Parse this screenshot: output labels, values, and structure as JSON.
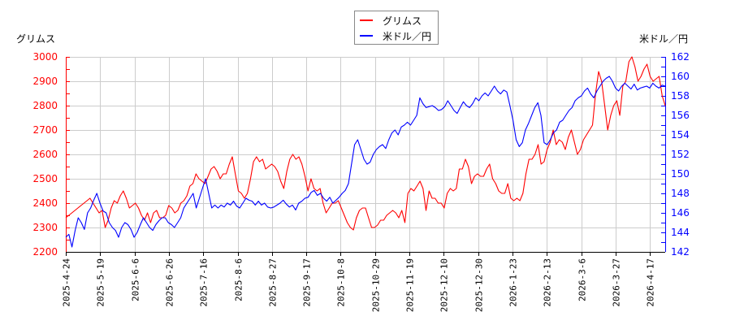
{
  "legend": {
    "items": [
      {
        "label": "グリムス",
        "color": "#ff0000"
      },
      {
        "label": "米ドル／円",
        "color": "#0000ff"
      }
    ]
  },
  "axes": {
    "left_title": "グリムス",
    "right_title": "米ドル／円"
  },
  "chart_data": {
    "type": "line",
    "title": "",
    "xlabel": "",
    "ylabel_left": "グリムス",
    "ylabel_right": "米ドル／円",
    "grid": true,
    "legend_position": "top-center",
    "x_tick_labels": [
      "2025-4-24",
      "2025-5-19",
      "2025-6-6",
      "2025-6-26",
      "2025-7-16",
      "2025-8-6",
      "2025-8-27",
      "2025-9-17",
      "2025-10-8",
      "2025-10-29",
      "2025-11-19",
      "2025-12-10",
      "2025-12-30",
      "2026-1-23",
      "2026-2-13",
      "2026-3-6",
      "2026-3-27",
      "2026-4-17"
    ],
    "y_left": {
      "min": 2200,
      "max": 3000,
      "ticks": [
        2200,
        2300,
        2400,
        2500,
        2600,
        2700,
        2800,
        2900,
        3000
      ],
      "color": "#ff0000"
    },
    "y_right": {
      "min": 142,
      "max": 162,
      "ticks": [
        142,
        144,
        146,
        148,
        150,
        152,
        154,
        156,
        158,
        160,
        162
      ],
      "color": "#0000ff"
    },
    "series": [
      {
        "name": "グリムス",
        "axis": "left",
        "color": "#ff0000",
        "values": [
          2340,
          2350,
          2360,
          2370,
          2380,
          2390,
          2400,
          2410,
          2420,
          2400,
          2380,
          2360,
          2370,
          2300,
          2330,
          2380,
          2410,
          2400,
          2430,
          2450,
          2420,
          2380,
          2390,
          2400,
          2380,
          2350,
          2330,
          2360,
          2320,
          2360,
          2370,
          2340,
          2340,
          2350,
          2390,
          2380,
          2360,
          2370,
          2400,
          2410,
          2430,
          2470,
          2480,
          2520,
          2500,
          2490,
          2480,
          2510,
          2540,
          2550,
          2530,
          2500,
          2520,
          2520,
          2560,
          2590,
          2520,
          2450,
          2440,
          2420,
          2440,
          2500,
          2570,
          2590,
          2570,
          2580,
          2540,
          2550,
          2560,
          2550,
          2530,
          2490,
          2460,
          2530,
          2580,
          2600,
          2580,
          2590,
          2560,
          2510,
          2450,
          2500,
          2460,
          2450,
          2460,
          2400,
          2360,
          2380,
          2400,
          2400,
          2410,
          2380,
          2350,
          2320,
          2300,
          2290,
          2340,
          2370,
          2380,
          2380,
          2340,
          2300,
          2300,
          2310,
          2330,
          2330,
          2350,
          2360,
          2370,
          2360,
          2340,
          2370,
          2320,
          2440,
          2460,
          2450,
          2470,
          2490,
          2460,
          2370,
          2450,
          2420,
          2420,
          2400,
          2400,
          2380,
          2440,
          2460,
          2450,
          2460,
          2540,
          2540,
          2580,
          2550,
          2480,
          2510,
          2520,
          2510,
          2510,
          2540,
          2560,
          2500,
          2480,
          2450,
          2440,
          2440,
          2480,
          2420,
          2410,
          2420,
          2410,
          2440,
          2520,
          2580,
          2580,
          2600,
          2640,
          2560,
          2570,
          2620,
          2650,
          2700,
          2640,
          2660,
          2650,
          2620,
          2670,
          2700,
          2650,
          2600,
          2620,
          2660,
          2680,
          2700,
          2720,
          2850,
          2940,
          2900,
          2800,
          2700,
          2760,
          2800,
          2820,
          2760,
          2880,
          2900,
          2980,
          3000,
          2960,
          2900,
          2920,
          2950,
          2970,
          2920,
          2900,
          2910,
          2920,
          2840,
          2800
        ]
      },
      {
        "name": "米ドル／円",
        "axis": "right",
        "color": "#0000ff",
        "values": [
          143.5,
          143.8,
          142.5,
          144.2,
          145.5,
          145.0,
          144.3,
          146.0,
          146.5,
          147.3,
          148.0,
          147.0,
          146.2,
          146.0,
          145.0,
          144.5,
          144.2,
          143.5,
          144.5,
          145.0,
          144.8,
          144.3,
          143.5,
          144.0,
          144.8,
          145.5,
          145.0,
          144.5,
          144.2,
          144.8,
          145.2,
          145.5,
          145.5,
          145.0,
          144.8,
          144.5,
          145.0,
          145.5,
          146.5,
          147.0,
          147.5,
          148.0,
          146.5,
          147.5,
          148.5,
          149.5,
          148.0,
          146.5,
          146.8,
          146.5,
          146.8,
          146.6,
          147.0,
          146.8,
          147.2,
          146.7,
          146.5,
          147.0,
          147.5,
          147.3,
          147.2,
          146.8,
          147.2,
          146.8,
          147.0,
          146.6,
          146.5,
          146.6,
          146.8,
          147.0,
          147.3,
          146.9,
          146.6,
          146.8,
          146.3,
          147.0,
          147.2,
          147.5,
          147.6,
          148.1,
          148.3,
          147.8,
          148.0,
          147.5,
          147.2,
          147.6,
          147.0,
          147.3,
          147.6,
          148.0,
          148.3,
          149.0,
          151.0,
          153.0,
          153.5,
          152.5,
          151.5,
          151.0,
          151.2,
          152.0,
          152.5,
          152.8,
          153.0,
          152.6,
          153.5,
          154.2,
          154.5,
          154.0,
          154.8,
          155.0,
          155.3,
          155.0,
          155.5,
          156.0,
          157.8,
          157.2,
          156.8,
          156.9,
          157.0,
          156.8,
          156.5,
          156.6,
          156.9,
          157.5,
          157.0,
          156.5,
          156.2,
          156.8,
          157.4,
          157.0,
          156.8,
          157.2,
          157.8,
          157.5,
          158.0,
          158.3,
          158.0,
          158.5,
          159.0,
          158.5,
          158.2,
          158.6,
          158.4,
          157.0,
          155.5,
          153.5,
          152.8,
          153.2,
          154.5,
          155.2,
          156.0,
          156.8,
          157.3,
          156.0,
          153.2,
          153.0,
          153.5,
          154.2,
          154.5,
          155.3,
          155.5,
          156.0,
          156.5,
          156.8,
          157.5,
          157.8,
          158.0,
          158.5,
          158.8,
          158.2,
          157.8,
          158.5,
          159.0,
          159.5,
          159.8,
          160.0,
          159.5,
          158.8,
          158.5,
          159.0,
          159.3,
          159.0,
          158.7,
          159.2,
          158.6,
          158.8,
          158.9,
          159.0,
          158.8,
          159.3,
          159.0,
          158.8,
          159.1,
          159.0
        ]
      }
    ]
  }
}
